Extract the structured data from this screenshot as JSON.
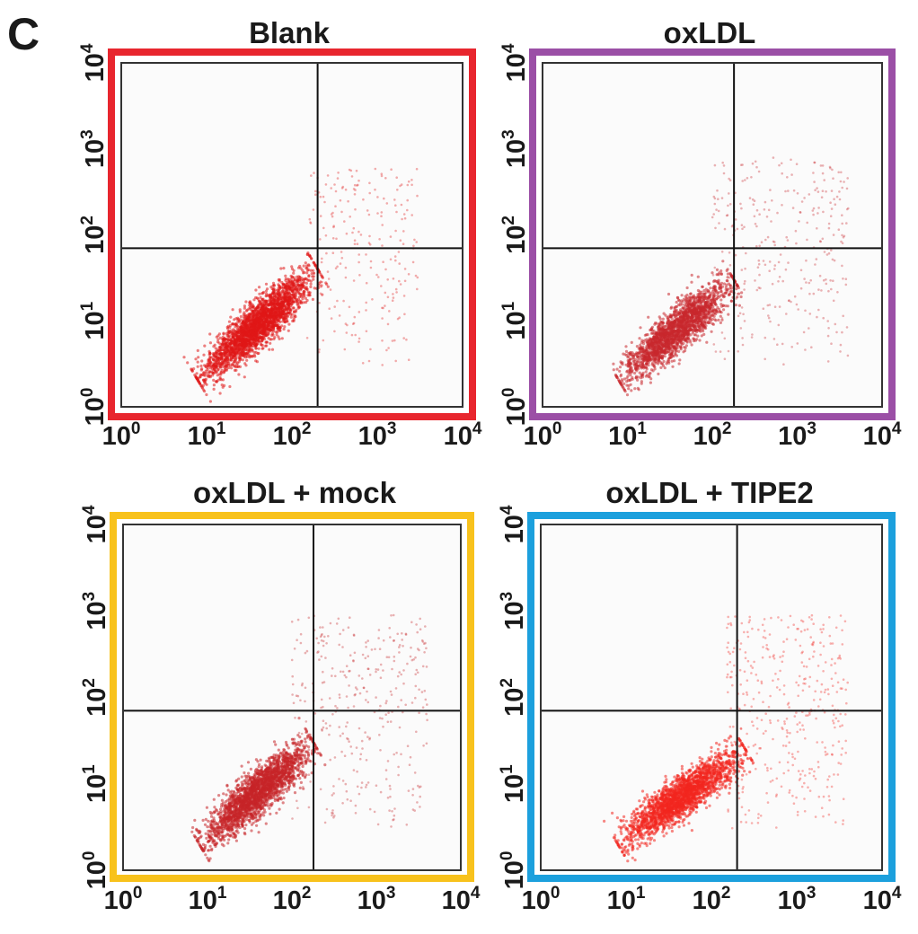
{
  "figure": {
    "panel_letter": "C"
  },
  "chart_data": [
    {
      "type": "scatter",
      "title": "Blank",
      "frame_color": "#e8262e",
      "point_color": "#e01818",
      "x_scale": "log",
      "y_scale": "log",
      "xlim": [
        1,
        10000
      ],
      "ylim": [
        1,
        10000
      ],
      "x_ticks": [
        "10",
        "10",
        "10",
        "10",
        "10"
      ],
      "x_tick_exponents": [
        "0",
        "1",
        "2",
        "3",
        "4"
      ],
      "y_ticks": [
        "10",
        "10",
        "10",
        "10",
        "10"
      ],
      "y_tick_exponents": [
        "0",
        "1",
        "2",
        "3",
        "4"
      ],
      "quadrant_gates": {
        "x": 200,
        "y": 70
      },
      "main_population": {
        "x_range": [
          8,
          200
        ],
        "y_range": [
          2,
          40
        ],
        "count": 2600
      },
      "diffuse_points": {
        "count": 220,
        "x_range": [
          150,
          3000
        ],
        "y_range": [
          3,
          600
        ]
      }
    },
    {
      "type": "scatter",
      "title": "oxLDL",
      "frame_color": "#9b4fa6",
      "point_color": "#c8282d",
      "x_scale": "log",
      "y_scale": "log",
      "xlim": [
        1,
        10000
      ],
      "ylim": [
        1,
        10000
      ],
      "x_ticks": [
        "10",
        "10",
        "10",
        "10",
        "10"
      ],
      "x_tick_exponents": [
        "0",
        "1",
        "2",
        "3",
        "4"
      ],
      "y_ticks": [
        "10",
        "10",
        "10",
        "10",
        "10"
      ],
      "y_tick_exponents": [
        "0",
        "1",
        "2",
        "3",
        "4"
      ],
      "quadrant_gates": {
        "x": 180,
        "y": 70
      },
      "main_population": {
        "x_range": [
          8,
          180
        ],
        "y_range": [
          2,
          30
        ],
        "count": 2100
      },
      "diffuse_points": {
        "count": 300,
        "x_range": [
          100,
          4000
        ],
        "y_range": [
          3,
          800
        ]
      }
    },
    {
      "type": "scatter",
      "title": "oxLDL + mock",
      "frame_color": "#f8c21c",
      "point_color": "#c62428",
      "x_scale": "log",
      "y_scale": "log",
      "xlim": [
        1,
        10000
      ],
      "ylim": [
        1,
        10000
      ],
      "x_ticks": [
        "10",
        "10",
        "10",
        "10",
        "10"
      ],
      "x_tick_exponents": [
        "0",
        "1",
        "2",
        "3",
        "4"
      ],
      "y_ticks": [
        "10",
        "10",
        "10",
        "10",
        "10"
      ],
      "y_tick_exponents": [
        "0",
        "1",
        "2",
        "3",
        "4"
      ],
      "quadrant_gates": {
        "x": 180,
        "y": 70
      },
      "main_population": {
        "x_range": [
          8,
          180
        ],
        "y_range": [
          2,
          30
        ],
        "count": 2300
      },
      "diffuse_points": {
        "count": 340,
        "x_range": [
          100,
          4000
        ],
        "y_range": [
          3,
          900
        ]
      }
    },
    {
      "type": "scatter",
      "title": "oxLDL + TIPE2",
      "frame_color": "#1ca0dd",
      "point_color": "#f2261f",
      "x_scale": "log",
      "y_scale": "log",
      "xlim": [
        1,
        10000
      ],
      "ylim": [
        1,
        10000
      ],
      "x_ticks": [
        "10",
        "10",
        "10",
        "10",
        "10"
      ],
      "x_tick_exponents": [
        "0",
        "1",
        "2",
        "3",
        "4"
      ],
      "y_ticks": [
        "10",
        "10",
        "10",
        "10",
        "10"
      ],
      "y_tick_exponents": [
        "0",
        "1",
        "2",
        "3",
        "4"
      ],
      "quadrant_gates": {
        "x": 200,
        "y": 70
      },
      "main_population": {
        "x_range": [
          8,
          250
        ],
        "y_range": [
          2,
          25
        ],
        "count": 2200
      },
      "diffuse_points": {
        "count": 380,
        "x_range": [
          150,
          4000
        ],
        "y_range": [
          3,
          900
        ]
      }
    }
  ]
}
